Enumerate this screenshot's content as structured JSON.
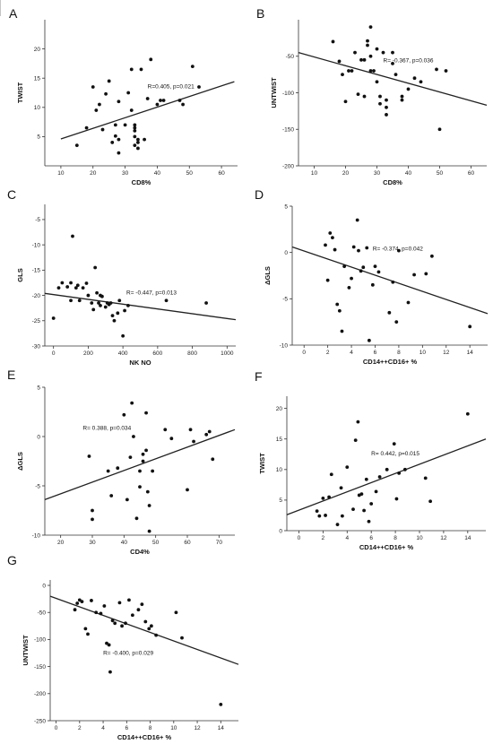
{
  "chart_data": [
    {
      "panel": "A",
      "type": "scatter",
      "xlabel": "CD8%",
      "ylabel": "TWIST",
      "xlim": [
        5,
        65
      ],
      "ylim": [
        0,
        25
      ],
      "xticks": [
        10,
        20,
        30,
        40,
        50,
        60
      ],
      "yticks": [
        5,
        10,
        15,
        20
      ],
      "annotation": "R=0.405, p=0.021",
      "ann_at": [
        37,
        13.3
      ],
      "fit": {
        "x1": 10,
        "y1": 4.6,
        "x2": 64,
        "y2": 14.4
      },
      "points": [
        [
          15,
          3.5
        ],
        [
          18,
          6.5
        ],
        [
          20,
          13.5
        ],
        [
          21,
          9.5
        ],
        [
          22,
          10.5
        ],
        [
          23,
          6.2
        ],
        [
          24,
          12.3
        ],
        [
          25,
          14.5
        ],
        [
          26,
          4
        ],
        [
          27,
          5.1
        ],
        [
          27,
          7
        ],
        [
          28,
          11
        ],
        [
          28,
          4.5
        ],
        [
          28,
          2.2
        ],
        [
          30,
          7
        ],
        [
          31,
          12.5
        ],
        [
          32,
          16.5
        ],
        [
          32,
          9.5
        ],
        [
          33,
          6.5
        ],
        [
          33,
          7
        ],
        [
          33,
          6
        ],
        [
          33,
          5
        ],
        [
          33,
          3.5
        ],
        [
          34,
          4
        ],
        [
          34,
          3
        ],
        [
          34,
          4.5
        ],
        [
          35,
          16.5
        ],
        [
          36,
          4.5
        ],
        [
          37,
          11.5
        ],
        [
          38,
          18.2
        ],
        [
          40,
          10.5
        ],
        [
          41,
          11.2
        ],
        [
          42,
          11.2
        ],
        [
          47,
          11.2
        ],
        [
          48,
          10.5
        ],
        [
          51,
          17
        ],
        [
          53,
          13.5
        ]
      ]
    },
    {
      "panel": "B",
      "type": "scatter",
      "xlabel": "CD8%",
      "ylabel": "UNTWIST",
      "xlim": [
        5,
        65
      ],
      "ylim": [
        -200,
        0
      ],
      "xticks": [
        10,
        20,
        30,
        40,
        50,
        60
      ],
      "yticks": [
        -50,
        -100,
        -150,
        -200
      ],
      "annotation": "R= -0.367, p=0.036",
      "ann_at": [
        32,
        -58
      ],
      "fit": {
        "x1": 5,
        "y1": -45,
        "x2": 65,
        "y2": -117
      },
      "points": [
        [
          16,
          -30
        ],
        [
          18,
          -57
        ],
        [
          19,
          -75
        ],
        [
          20,
          -112
        ],
        [
          21,
          -70
        ],
        [
          22,
          -70
        ],
        [
          23,
          -45
        ],
        [
          24,
          -102
        ],
        [
          25,
          -55
        ],
        [
          26,
          -105
        ],
        [
          26,
          -55
        ],
        [
          27,
          -35
        ],
        [
          27,
          -29
        ],
        [
          28,
          -70
        ],
        [
          28,
          -50
        ],
        [
          28,
          -10
        ],
        [
          29,
          -70
        ],
        [
          30,
          -85
        ],
        [
          30,
          -40
        ],
        [
          31,
          -115
        ],
        [
          31,
          -105
        ],
        [
          32,
          -45
        ],
        [
          33,
          -130
        ],
        [
          33,
          -110
        ],
        [
          33,
          -120
        ],
        [
          35,
          -60
        ],
        [
          35,
          -45
        ],
        [
          36,
          -75
        ],
        [
          38,
          -105
        ],
        [
          38,
          -110
        ],
        [
          40,
          -95
        ],
        [
          42,
          -80
        ],
        [
          44,
          -85
        ],
        [
          49,
          -68
        ],
        [
          50,
          -150
        ],
        [
          52,
          -70
        ]
      ]
    },
    {
      "panel": "C",
      "type": "scatter",
      "xlabel": "NK NO",
      "ylabel": "GLS",
      "xlim": [
        -50,
        1050
      ],
      "ylim": [
        -30,
        -2
      ],
      "xticks": [
        0,
        200,
        400,
        600,
        800,
        1000
      ],
      "yticks": [
        -5,
        -10,
        -15,
        -20,
        -25,
        -30
      ],
      "annotation": "R= -0.447, p=0.013",
      "ann_at": [
        420,
        -19.8
      ],
      "fit": {
        "x1": -50,
        "y1": -19.6,
        "x2": 1050,
        "y2": -24.8
      },
      "points": [
        [
          0,
          -24.5
        ],
        [
          30,
          -18.5
        ],
        [
          50,
          -17.5
        ],
        [
          80,
          -18.3
        ],
        [
          100,
          -21
        ],
        [
          100,
          -17.5
        ],
        [
          110,
          -8.3
        ],
        [
          130,
          -18.5
        ],
        [
          140,
          -18
        ],
        [
          150,
          -21
        ],
        [
          170,
          -18.5
        ],
        [
          190,
          -17.6
        ],
        [
          200,
          -20
        ],
        [
          220,
          -21.5
        ],
        [
          230,
          -22.8
        ],
        [
          240,
          -14.5
        ],
        [
          250,
          -19.5
        ],
        [
          260,
          -21.5
        ],
        [
          270,
          -22
        ],
        [
          270,
          -20
        ],
        [
          280,
          -20.2
        ],
        [
          300,
          -22.3
        ],
        [
          310,
          -21.5
        ],
        [
          320,
          -21.8
        ],
        [
          330,
          -21.5
        ],
        [
          340,
          -24
        ],
        [
          350,
          -25
        ],
        [
          370,
          -23.5
        ],
        [
          380,
          -21
        ],
        [
          400,
          -28
        ],
        [
          410,
          -23
        ],
        [
          430,
          -22
        ],
        [
          650,
          -21
        ],
        [
          880,
          -21.5
        ]
      ]
    },
    {
      "panel": "D",
      "type": "scatter",
      "xlabel": "CD14++CD16+ %",
      "ylabel": "ΔGLS",
      "xlim": [
        -1,
        15.5
      ],
      "ylim": [
        -10,
        5
      ],
      "xticks": [
        0,
        2,
        4,
        6,
        8,
        10,
        12,
        14
      ],
      "yticks": [
        5,
        0,
        -5,
        -10
      ],
      "annotation": "R= -0.374, p=0.042",
      "ann_at": [
        5.8,
        0.2
      ],
      "fit": {
        "x1": -1,
        "y1": 0.6,
        "x2": 15.5,
        "y2": -6.6
      },
      "points": [
        [
          1.8,
          0.8
        ],
        [
          2,
          -3
        ],
        [
          2.2,
          2.1
        ],
        [
          2.4,
          1.6
        ],
        [
          2.6,
          0.3
        ],
        [
          2.8,
          -5.6
        ],
        [
          3,
          -6.3
        ],
        [
          3.2,
          -8.5
        ],
        [
          3.4,
          -1.5
        ],
        [
          3.8,
          -3.8
        ],
        [
          4,
          -2.8
        ],
        [
          4.2,
          0.6
        ],
        [
          4.5,
          3.5
        ],
        [
          4.6,
          0.2
        ],
        [
          4.8,
          -2
        ],
        [
          5,
          -1.6
        ],
        [
          5.3,
          0.5
        ],
        [
          5.5,
          -9.5
        ],
        [
          5.8,
          -3.5
        ],
        [
          6,
          -1.5
        ],
        [
          6.3,
          -2.1
        ],
        [
          7.2,
          -6.5
        ],
        [
          7.5,
          -3.2
        ],
        [
          7.8,
          -7.5
        ],
        [
          8,
          0.2
        ],
        [
          8.8,
          -5.4
        ],
        [
          9.3,
          -2.4
        ],
        [
          10.3,
          -2.3
        ],
        [
          10.8,
          -0.4
        ],
        [
          14,
          -8
        ]
      ]
    },
    {
      "panel": "E",
      "type": "scatter",
      "xlabel": "CD4%",
      "ylabel": "ΔGLS",
      "xlim": [
        15,
        75
      ],
      "ylim": [
        -10,
        5
      ],
      "xticks": [
        20,
        30,
        40,
        50,
        60,
        70
      ],
      "yticks": [
        5,
        0,
        -5,
        -10
      ],
      "annotation": "R= 0.388, p=0.034",
      "ann_at": [
        27,
        0.7
      ],
      "fit": {
        "x1": 15,
        "y1": -6.4,
        "x2": 75,
        "y2": 0.7
      },
      "points": [
        [
          29,
          -2
        ],
        [
          30,
          -7.5
        ],
        [
          30,
          -8.4
        ],
        [
          35,
          -3.5
        ],
        [
          36,
          -6
        ],
        [
          38,
          -3.2
        ],
        [
          40,
          2.2
        ],
        [
          41,
          -6.4
        ],
        [
          42,
          -2.1
        ],
        [
          42.5,
          3.4
        ],
        [
          43,
          0
        ],
        [
          44,
          -8.3
        ],
        [
          45,
          -5.1
        ],
        [
          45,
          -3.5
        ],
        [
          46,
          -2.5
        ],
        [
          46,
          -1.8
        ],
        [
          47,
          2.4
        ],
        [
          47,
          -1.4
        ],
        [
          47.5,
          -5.6
        ],
        [
          48,
          -7
        ],
        [
          49,
          -3.5
        ],
        [
          53,
          0.7
        ],
        [
          55,
          -0.2
        ],
        [
          60,
          -5.4
        ],
        [
          61,
          0.7
        ],
        [
          62,
          -0.5
        ],
        [
          66,
          0.2
        ],
        [
          67,
          0.5
        ],
        [
          68,
          -2.3
        ],
        [
          48,
          -9.6
        ]
      ]
    },
    {
      "panel": "F",
      "type": "scatter",
      "xlabel": "CD14++CD16+ %",
      "ylabel": "TWIST",
      "xlim": [
        -1,
        15.5
      ],
      "ylim": [
        0,
        22
      ],
      "xticks": [
        0,
        2,
        4,
        6,
        8,
        10,
        12,
        14
      ],
      "yticks": [
        0,
        5,
        10,
        15,
        20
      ],
      "annotation": "R= 0.442, p=0.015",
      "ann_at": [
        6,
        12.3
      ],
      "fit": {
        "x1": -1,
        "y1": 2.6,
        "x2": 15.5,
        "y2": 15
      },
      "points": [
        [
          1.5,
          3.2
        ],
        [
          1.7,
          2.4
        ],
        [
          2,
          5.3
        ],
        [
          2.2,
          2.5
        ],
        [
          2.5,
          5.5
        ],
        [
          2.7,
          9.2
        ],
        [
          3.2,
          1
        ],
        [
          3.5,
          7
        ],
        [
          3.6,
          2.4
        ],
        [
          4,
          10.4
        ],
        [
          4.5,
          3.5
        ],
        [
          4.7,
          14.8
        ],
        [
          4.9,
          17.8
        ],
        [
          5,
          5.8
        ],
        [
          5.2,
          6
        ],
        [
          5.4,
          3.3
        ],
        [
          5.6,
          8.4
        ],
        [
          5.8,
          1.5
        ],
        [
          6,
          4.4
        ],
        [
          6.4,
          6.4
        ],
        [
          6.7,
          8.8
        ],
        [
          7.3,
          10
        ],
        [
          7.9,
          14.2
        ],
        [
          8.1,
          5.2
        ],
        [
          8.3,
          9.4
        ],
        [
          8.8,
          10
        ],
        [
          10.5,
          8.6
        ],
        [
          10.9,
          4.8
        ],
        [
          14,
          19.1
        ]
      ]
    },
    {
      "panel": "G",
      "type": "scatter",
      "xlabel": "CD14++CD16+ %",
      "ylabel": "UNTWIST",
      "xlim": [
        -0.5,
        15.5
      ],
      "ylim": [
        -250,
        10
      ],
      "xticks": [
        0,
        2,
        4,
        6,
        8,
        10,
        12,
        14
      ],
      "yticks": [
        0,
        -50,
        -100,
        -150,
        -200,
        -250
      ],
      "annotation": "R= -0.400, p=0.029",
      "ann_at": [
        4,
        -128
      ],
      "fit": {
        "x1": -0.5,
        "y1": -20,
        "x2": 15.5,
        "y2": -146
      },
      "points": [
        [
          1.6,
          -45
        ],
        [
          1.8,
          -33
        ],
        [
          2,
          -27
        ],
        [
          2.2,
          -30
        ],
        [
          2.5,
          -80
        ],
        [
          2.7,
          -90
        ],
        [
          3,
          -28
        ],
        [
          3.4,
          -50
        ],
        [
          3.8,
          -52
        ],
        [
          4.1,
          -38
        ],
        [
          4.3,
          -107
        ],
        [
          4.5,
          -110
        ],
        [
          4.6,
          -160
        ],
        [
          4.8,
          -65
        ],
        [
          5,
          -70
        ],
        [
          5.4,
          -32
        ],
        [
          5.6,
          -75
        ],
        [
          5.9,
          -70
        ],
        [
          6.2,
          -27
        ],
        [
          6.5,
          -55
        ],
        [
          7,
          -45
        ],
        [
          7.3,
          -35
        ],
        [
          7.6,
          -67
        ],
        [
          7.9,
          -80
        ],
        [
          8.1,
          -75
        ],
        [
          8.5,
          -92
        ],
        [
          10.2,
          -50
        ],
        [
          10.7,
          -97
        ],
        [
          14,
          -220
        ]
      ]
    }
  ]
}
